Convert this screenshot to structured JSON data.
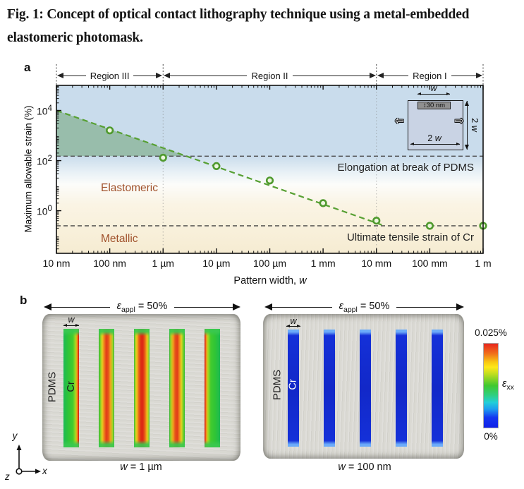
{
  "caption": "Fig. 1: Concept of optical contact lithography technique using a metal-embedded elastomeric photomask.",
  "colors": {
    "plot_blue": "#c9dcec",
    "plot_beige": "#f6ecd2",
    "trend_green": "#57a033",
    "shade_green": "#6fa477",
    "annotation_brown": "#a0512b",
    "cr_strip_blue": "#1430d8",
    "dashed_gray": "#4a4a4a"
  },
  "panel_a": {
    "label": "a",
    "regions": [
      {
        "label": "Region III"
      },
      {
        "label": "Region II"
      },
      {
        "label": "Region I"
      }
    ],
    "annotations": {
      "elastomeric": "Elastomeric",
      "metallic": "Metallic"
    },
    "inset": {
      "w_label": "w",
      "bar_label": "↕30 nm",
      "bottom_label_num": "2 ",
      "bottom_label_var": "w",
      "right_label_num": "2 ",
      "right_label_var": "w"
    }
  },
  "chart_data": {
    "type": "scatter",
    "xlabel_prefix": "Pattern width, ",
    "xlabel_var": "w",
    "ylabel": "Maximum allowable strain (%)",
    "x_scale": "log",
    "y_scale": "log",
    "x_ticks": [
      "10 nm",
      "100 nm",
      "1 µm",
      "10 µm",
      "100 µm",
      "1 mm",
      "10 mm",
      "100 mm",
      "1 m"
    ],
    "y_ticks": [
      {
        "exp": "4"
      },
      {
        "exp": "2"
      },
      {
        "exp": "0"
      }
    ],
    "xlim_decades": [
      0,
      8
    ],
    "ylim_log10": [
      -1.7,
      5
    ],
    "points": {
      "pattern_width": [
        "100 nm",
        "1 µm",
        "10 µm",
        "100 µm",
        "1 mm",
        "10 mm",
        "100 mm",
        "1 m"
      ],
      "decade": [
        1,
        2,
        3,
        4,
        5,
        6,
        7,
        8
      ],
      "max_strain_pct": [
        1600,
        130,
        60,
        16,
        2,
        0.4,
        0.25,
        0.25
      ]
    },
    "trend_line": {
      "start_decade": 0,
      "start_pct": 10000,
      "end_decade": 6.15,
      "end_pct": 0.25
    },
    "hlines": [
      {
        "label": "Elongation at break of PDMS",
        "value_pct": 150
      },
      {
        "label": "Ultimate tensile strain of Cr",
        "value_pct": 0.25
      }
    ],
    "region_boundaries_decades": [
      0,
      2,
      6,
      8
    ]
  },
  "panel_b": {
    "label": "b",
    "applied_strain": {
      "sym": "ε",
      "sub": "appl",
      "eq": " = 50%"
    },
    "left": {
      "material": "PDMS",
      "metal": "Cr",
      "w_label": "w",
      "strips": 5,
      "caption_var": "w",
      "caption_rest": " = 1 µm"
    },
    "right": {
      "material": "PDMS",
      "metal": "Cr",
      "w_label": "w",
      "strips": 5,
      "caption_var": "w",
      "caption_rest": " = 100 nm"
    },
    "colorbar": {
      "max": "0.025%",
      "min": "0%",
      "sym": "ε",
      "sub": "xx"
    },
    "axes": {
      "x": "x",
      "y": "y",
      "z": "z"
    }
  }
}
